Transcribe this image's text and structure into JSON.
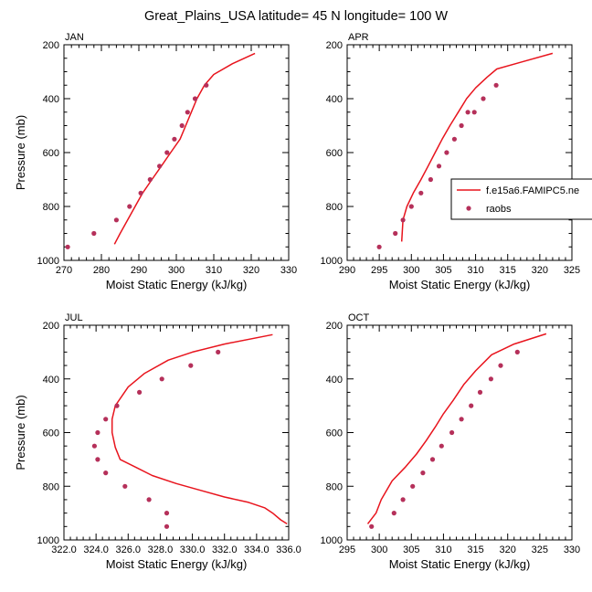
{
  "title": "Great_Plains_USA  latitude= 45 N longitude= 100 W",
  "colors": {
    "model": "#e8141d",
    "obs": "#b5305a"
  },
  "legend": {
    "model": "f.e15a6.FAMIPC5.ne",
    "obs": "raobs"
  },
  "chart_data": [
    {
      "type": "line",
      "panel": "JAN",
      "xlabel": "Moist Static Energy (kJ/kg)",
      "ylabel": "Pressure (mb)",
      "xlim": [
        270,
        330
      ],
      "ylim": [
        1000,
        200
      ],
      "y_reversed": true,
      "xticks": [
        270,
        280,
        290,
        300,
        310,
        320,
        330
      ],
      "xtick_labels": [
        "270",
        "280",
        "290",
        "300",
        "310",
        "320",
        "330"
      ],
      "yticks": [
        200,
        400,
        600,
        800,
        1000
      ],
      "series": [
        {
          "name": "f.e15a6.FAMIPC5.ne",
          "style": "line",
          "x": [
            283.5,
            285.0,
            287.0,
            289.0,
            291.0,
            293.5,
            296.0,
            298.5,
            301.0,
            302.5,
            304.0,
            305.5,
            307.5,
            310.0,
            315.0,
            321.0
          ],
          "y": [
            940,
            900,
            850,
            800,
            750,
            700,
            650,
            600,
            550,
            500,
            450,
            400,
            350,
            310,
            270,
            232
          ]
        },
        {
          "name": "raobs",
          "style": "markers",
          "x": [
            271.0,
            278.0,
            284.0,
            287.5,
            290.5,
            293.0,
            295.5,
            297.5,
            299.5,
            301.5,
            303.0,
            305.0,
            308.0
          ],
          "y": [
            950,
            900,
            850,
            800,
            750,
            700,
            650,
            600,
            550,
            500,
            450,
            400,
            350
          ]
        }
      ]
    },
    {
      "type": "line",
      "panel": "APR",
      "xlabel": "Moist Static Energy (kJ/kg)",
      "ylabel": "",
      "xlim": [
        290,
        325
      ],
      "ylim": [
        1000,
        200
      ],
      "y_reversed": true,
      "xticks": [
        290,
        295,
        300,
        305,
        310,
        315,
        320,
        325
      ],
      "xtick_labels": [
        "290",
        "295",
        "300",
        "305",
        "310",
        "315",
        "320",
        "325"
      ],
      "yticks": [
        200,
        400,
        600,
        800,
        1000
      ],
      "series": [
        {
          "name": "f.e15a6.FAMIPC5.ne",
          "style": "line",
          "x": [
            298.5,
            298.7,
            299.3,
            300.3,
            301.5,
            302.6,
            303.7,
            304.8,
            306.0,
            307.3,
            308.6,
            310.0,
            311.8,
            313.3,
            317.0,
            322.0
          ],
          "y": [
            930,
            850,
            800,
            750,
            700,
            650,
            600,
            550,
            500,
            450,
            400,
            360,
            320,
            290,
            265,
            232
          ]
        },
        {
          "name": "raobs",
          "style": "markers",
          "x": [
            295.0,
            297.5,
            298.7,
            300.0,
            301.5,
            303.0,
            304.3,
            305.5,
            306.7,
            307.8,
            308.8,
            309.8,
            311.2,
            313.2
          ],
          "y": [
            950,
            900,
            850,
            800,
            750,
            700,
            650,
            600,
            550,
            500,
            450,
            450,
            400,
            350
          ]
        }
      ]
    },
    {
      "type": "line",
      "panel": "JUL",
      "xlabel": "Moist Static Energy (kJ/kg)",
      "ylabel": "Pressure (mb)",
      "xlim": [
        322,
        336
      ],
      "ylim": [
        1000,
        200
      ],
      "y_reversed": true,
      "xticks": [
        322,
        324,
        326,
        328,
        330,
        332,
        334,
        336
      ],
      "xtick_labels": [
        "322.0",
        "324.0",
        "326.0",
        "328.0",
        "330.0",
        "332.0",
        "334.0",
        "336.0"
      ],
      "yticks": [
        200,
        400,
        600,
        800,
        1000
      ],
      "series": [
        {
          "name": "f.e15a6.FAMIPC5.ne",
          "style": "line",
          "x": [
            335.9,
            335.5,
            335.0,
            334.5,
            333.5,
            332.0,
            330.5,
            329.0,
            327.5,
            326.5,
            325.5,
            325.2,
            325.0,
            325.0,
            325.2,
            326.0,
            327.0,
            328.5,
            330.0,
            332.0,
            335.0
          ],
          "y": [
            940,
            925,
            900,
            880,
            860,
            840,
            815,
            790,
            760,
            730,
            700,
            655,
            600,
            550,
            500,
            430,
            380,
            330,
            300,
            270,
            235
          ]
        },
        {
          "name": "raobs",
          "style": "markers",
          "x": [
            328.4,
            328.4,
            327.3,
            325.8,
            324.6,
            324.1,
            323.9,
            324.1,
            324.6,
            325.3,
            326.7,
            328.1,
            329.9,
            331.6
          ],
          "y": [
            950,
            900,
            850,
            800,
            750,
            700,
            650,
            600,
            550,
            500,
            450,
            400,
            350,
            300
          ]
        }
      ]
    },
    {
      "type": "line",
      "panel": "OCT",
      "xlabel": "Moist Static Energy (kJ/kg)",
      "ylabel": "",
      "xlim": [
        295,
        330
      ],
      "ylim": [
        1000,
        200
      ],
      "y_reversed": true,
      "xticks": [
        295,
        300,
        305,
        310,
        315,
        320,
        325,
        330
      ],
      "xtick_labels": [
        "295",
        "300",
        "305",
        "310",
        "315",
        "320",
        "325",
        "330"
      ],
      "yticks": [
        200,
        400,
        600,
        800,
        1000
      ],
      "series": [
        {
          "name": "f.e15a6.FAMIPC5.ne",
          "style": "line",
          "x": [
            298.2,
            299.5,
            300.3,
            302.0,
            304.0,
            305.8,
            307.3,
            308.7,
            310.0,
            311.5,
            313.2,
            315.0,
            317.5,
            321.0,
            326.0
          ],
          "y": [
            940,
            900,
            850,
            780,
            730,
            680,
            630,
            580,
            530,
            480,
            420,
            370,
            310,
            270,
            232
          ]
        },
        {
          "name": "raobs",
          "style": "markers",
          "x": [
            298.8,
            302.3,
            303.7,
            305.2,
            306.8,
            308.3,
            309.7,
            311.3,
            312.8,
            314.3,
            315.7,
            317.4,
            318.9,
            321.5
          ],
          "y": [
            950,
            900,
            850,
            800,
            750,
            700,
            650,
            600,
            550,
            500,
            450,
            400,
            350,
            300
          ]
        }
      ]
    }
  ]
}
